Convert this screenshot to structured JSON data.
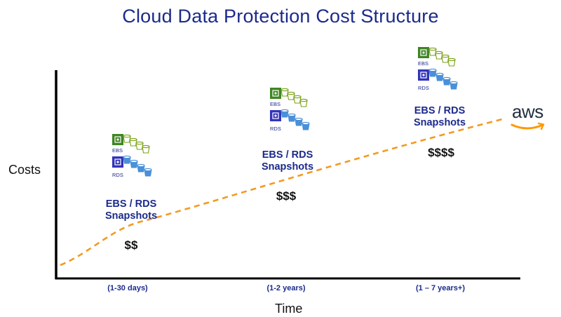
{
  "title": "Cloud Data Protection Cost Structure",
  "y_axis_label": "Costs",
  "x_axis_label": "Time",
  "brand": {
    "logo_text": "aws",
    "text_color": "#232f3e",
    "smile_color": "#ff9900"
  },
  "trend_line_color": "#f39a22",
  "stages": [
    {
      "period": "(1-30 days)",
      "label_line1": "EBS / RDS",
      "label_line2": "Snapshots",
      "cost": "$$",
      "icon_labels": [
        "EBS",
        "RDS"
      ]
    },
    {
      "period": "(1-2 years)",
      "label_line1": "EBS / RDS",
      "label_line2": "Snapshots",
      "cost": "$$$",
      "icon_labels": [
        "EBS",
        "RDS"
      ]
    },
    {
      "period": "(1 – 7 years+)",
      "label_line1": "EBS / RDS",
      "label_line2": "Snapshots",
      "cost": "$$$$",
      "icon_labels": [
        "EBS",
        "RDS"
      ]
    }
  ],
  "icons": {
    "ebs_volume": "ebs-volume-icon",
    "ebs_color": "#3f8624",
    "ebs_snapshot": "ebs-snapshot-bucket-icon",
    "ebs_snapshot_color": "#7aa116",
    "rds_instance": "rds-instance-icon",
    "rds_color": "#3334b9",
    "rds_snapshot": "rds-snapshot-bucket-icon",
    "rds_snapshot_color": "#4a90d9"
  }
}
